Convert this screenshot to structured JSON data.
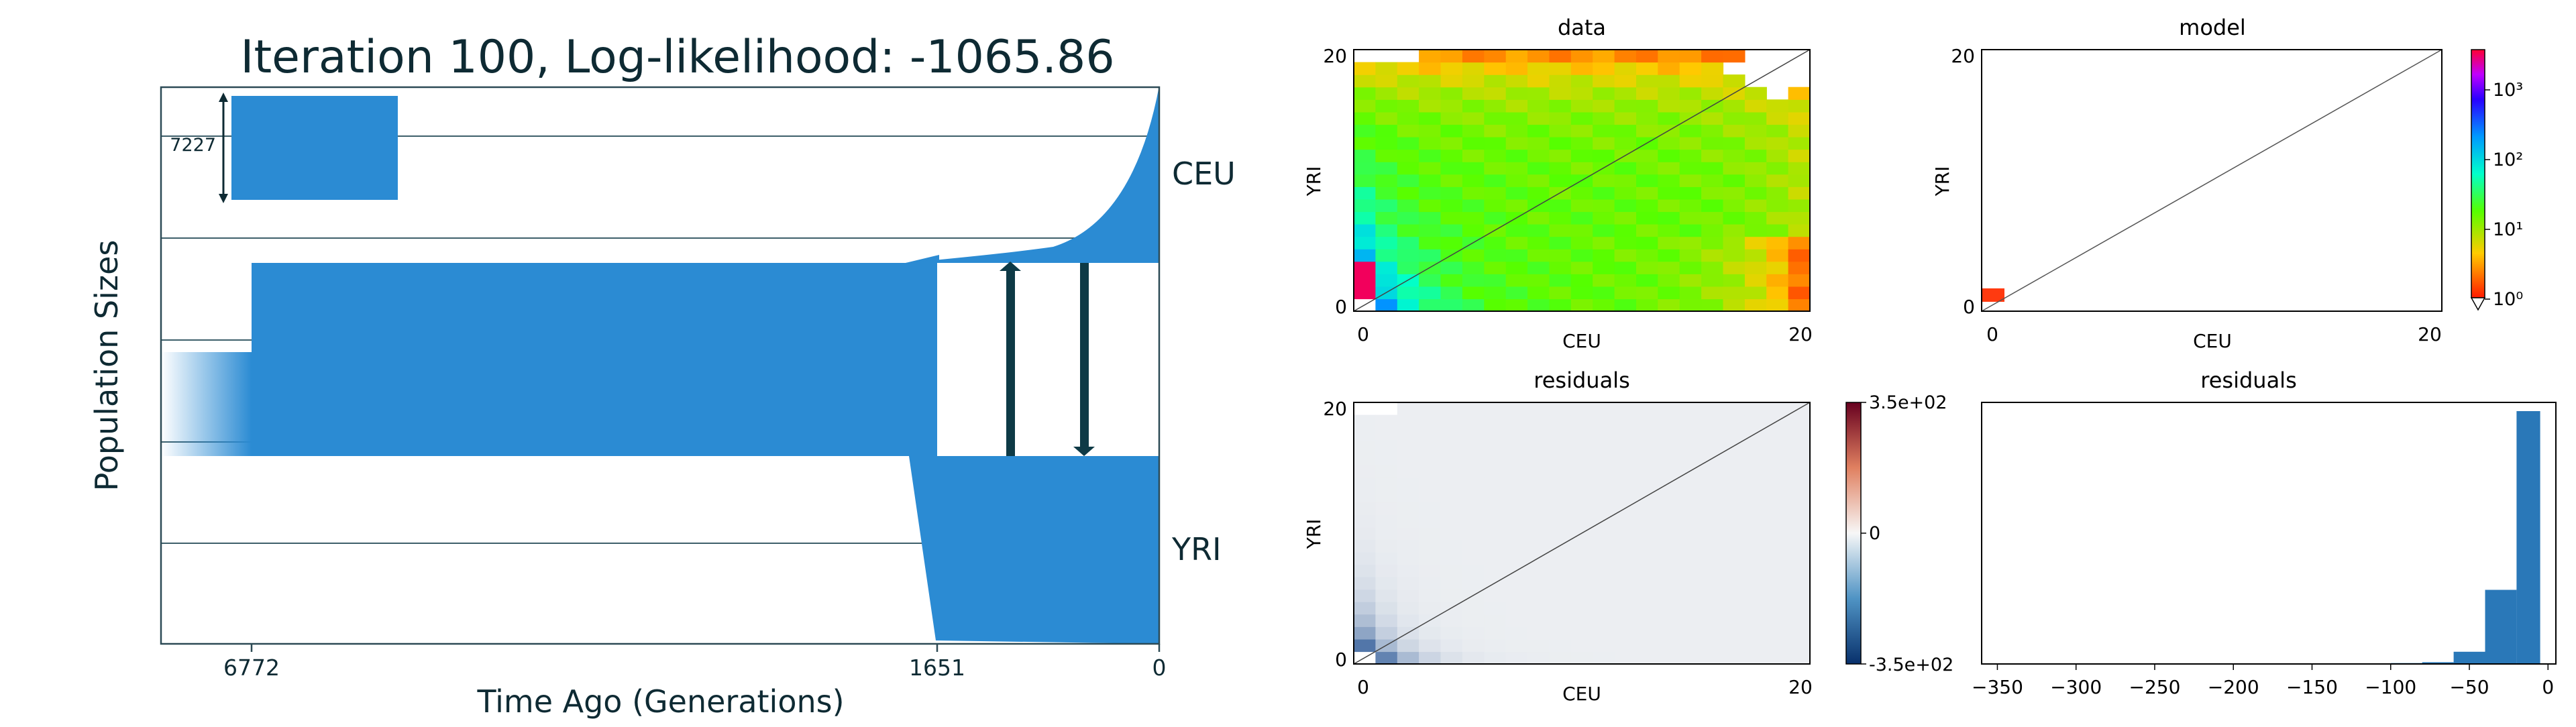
{
  "chart_data": [
    {
      "type": "demographic_model",
      "title": "Iteration 100, Log-likelihood: -1065.86",
      "xlabel": "Time Ago (Generations)",
      "ylabel": "Population Sizes",
      "xticks": [
        "6772",
        "1651",
        "0"
      ],
      "populations": [
        "CEU",
        "YRI"
      ],
      "size_bar_label": "7227",
      "colors": {
        "pop": "#2b8bd3",
        "arrow": "#0e3a46",
        "grid": "#3d5f6a"
      }
    },
    {
      "type": "heatmap",
      "title": "data",
      "xlabel": "CEU",
      "ylabel": "YRI",
      "xticks": [
        "0",
        "20"
      ],
      "yticks": [
        "0",
        "20"
      ],
      "colorscale": "log",
      "cbar_ticks": [
        "10⁰",
        "10¹",
        "10²",
        "10³"
      ]
    },
    {
      "type": "heatmap",
      "title": "model",
      "xlabel": "CEU",
      "ylabel": "YRI",
      "xticks": [
        "0",
        "20"
      ],
      "yticks": [
        "0",
        "20"
      ]
    },
    {
      "type": "heatmap",
      "title": "residuals",
      "xlabel": "CEU",
      "ylabel": "YRI",
      "xticks": [
        "0",
        "20"
      ],
      "yticks": [
        "0",
        "20"
      ],
      "cbar_ticks": [
        "3.5e+02",
        "0",
        "-3.5e+02"
      ]
    },
    {
      "type": "bar",
      "title": "residuals",
      "xticks": [
        "−350",
        "−300",
        "−250",
        "−200",
        "−150",
        "−100",
        "−50",
        "0"
      ],
      "xlim": [
        -360,
        5
      ],
      "bins": [
        {
          "x0": -200,
          "x1": -180,
          "count": 0.3
        },
        {
          "x0": -100,
          "x1": -80,
          "count": 1
        },
        {
          "x0": -80,
          "x1": -60,
          "count": 2
        },
        {
          "x0": -60,
          "x1": -40,
          "count": 14
        },
        {
          "x0": -40,
          "x1": -20,
          "count": 85
        },
        {
          "x0": -20,
          "x1": -5,
          "count": 290
        }
      ],
      "ylim": [
        0,
        300
      ],
      "color": "#2a78b8"
    }
  ]
}
